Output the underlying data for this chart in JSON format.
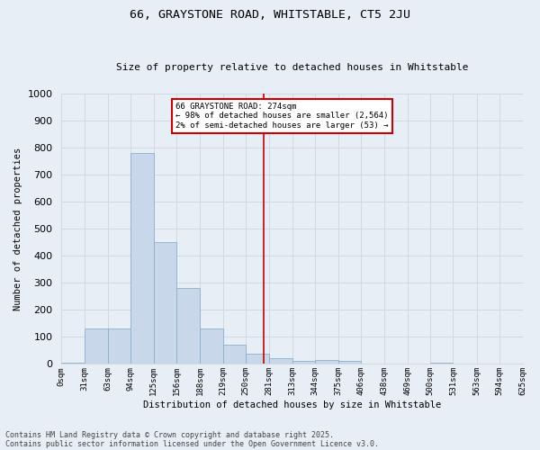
{
  "title": "66, GRAYSTONE ROAD, WHITSTABLE, CT5 2JU",
  "subtitle": "Size of property relative to detached houses in Whitstable",
  "xlabel": "Distribution of detached houses by size in Whitstable",
  "ylabel": "Number of detached properties",
  "bin_labels": [
    "0sqm",
    "31sqm",
    "63sqm",
    "94sqm",
    "125sqm",
    "156sqm",
    "188sqm",
    "219sqm",
    "250sqm",
    "281sqm",
    "313sqm",
    "344sqm",
    "375sqm",
    "406sqm",
    "438sqm",
    "469sqm",
    "500sqm",
    "531sqm",
    "563sqm",
    "594sqm",
    "625sqm"
  ],
  "bin_starts": [
    0,
    31,
    63,
    94,
    125,
    156,
    188,
    219,
    250,
    281,
    313,
    344,
    375,
    406,
    438,
    469,
    500,
    531,
    563,
    594
  ],
  "bar_values": [
    5,
    130,
    130,
    780,
    450,
    280,
    130,
    70,
    38,
    22,
    12,
    15,
    12,
    0,
    0,
    0,
    5,
    0,
    0,
    0
  ],
  "bar_color": "#c8d8ea",
  "bar_edge_color": "#8ab0cc",
  "grid_color": "#d0d8e0",
  "bg_color": "#e8eef5",
  "vline_x": 274,
  "vline_label": "66 GRAYSTONE ROAD: 274sqm",
  "annotation_line1": "← 98% of detached houses are smaller (2,564)",
  "annotation_line2": "2% of semi-detached houses are larger (53) →",
  "annotation_box_facecolor": "#ffffff",
  "annotation_border_color": "#cc0000",
  "vline_color": "#cc0000",
  "ylim": [
    0,
    1000
  ],
  "yticks": [
    0,
    100,
    200,
    300,
    400,
    500,
    600,
    700,
    800,
    900,
    1000
  ],
  "footnote1": "Contains HM Land Registry data © Crown copyright and database right 2025.",
  "footnote2": "Contains public sector information licensed under the Open Government Licence v3.0.",
  "bin_width_list": [
    31,
    32,
    31,
    31,
    31,
    32,
    31,
    31,
    31,
    32,
    31,
    31,
    31,
    32,
    31,
    31,
    31,
    32,
    31,
    31
  ]
}
